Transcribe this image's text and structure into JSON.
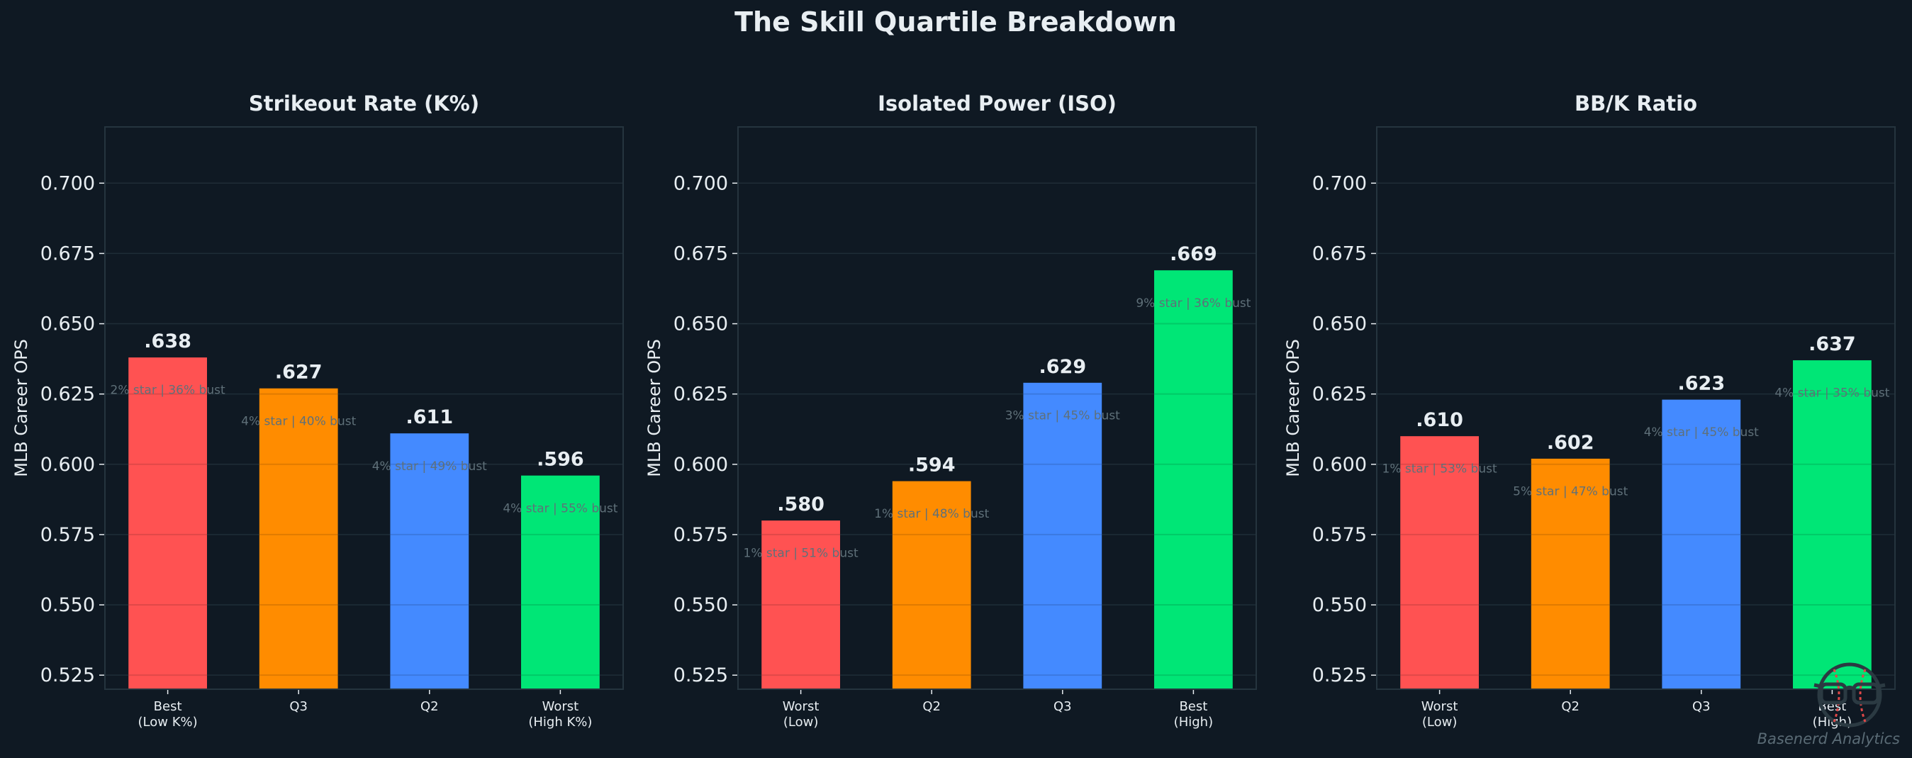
{
  "title": "The Skill Quartile Breakdown",
  "watermark": "Basenerd Analytics",
  "logo": "glasses-baseball-logo",
  "colors": {
    "background": "#0f1923",
    "bar_colors": [
      "#FF5252",
      "#FF8C00",
      "#448AFF",
      "#00E676"
    ],
    "text": "#e8eef2",
    "annotation": "#5f7079"
  },
  "chart_data": [
    {
      "type": "bar",
      "title": "Strikeout Rate (K%)",
      "ylabel": "MLB Career OPS",
      "ylim": [
        0.52,
        0.72
      ],
      "yticks": [
        "0.525",
        "0.550",
        "0.575",
        "0.600",
        "0.625",
        "0.650",
        "0.675",
        "0.700"
      ],
      "grid": true,
      "categories": [
        "Best\n(Low K%)",
        "Q3",
        "Q2",
        "Worst\n(High K%)"
      ],
      "values": [
        0.638,
        0.627,
        0.611,
        0.596
      ],
      "value_labels": [
        ".638",
        ".627",
        ".611",
        ".596"
      ],
      "annotations": [
        "2% star | 36% bust",
        "4% star | 40% bust",
        "4% star | 49% bust",
        "4% star | 55% bust"
      ]
    },
    {
      "type": "bar",
      "title": "Isolated Power (ISO)",
      "ylabel": "MLB Career OPS",
      "ylim": [
        0.52,
        0.72
      ],
      "yticks": [
        "0.525",
        "0.550",
        "0.575",
        "0.600",
        "0.625",
        "0.650",
        "0.675",
        "0.700"
      ],
      "grid": true,
      "categories": [
        "Worst\n(Low)",
        "Q2",
        "Q3",
        "Best\n(High)"
      ],
      "values": [
        0.58,
        0.594,
        0.629,
        0.669
      ],
      "value_labels": [
        ".580",
        ".594",
        ".629",
        ".669"
      ],
      "annotations": [
        "1% star | 51% bust",
        "1% star | 48% bust",
        "3% star | 45% bust",
        "9% star | 36% bust"
      ]
    },
    {
      "type": "bar",
      "title": "BB/K Ratio",
      "ylabel": "MLB Career OPS",
      "ylim": [
        0.52,
        0.72
      ],
      "yticks": [
        "0.525",
        "0.550",
        "0.575",
        "0.600",
        "0.625",
        "0.650",
        "0.675",
        "0.700"
      ],
      "grid": true,
      "categories": [
        "Worst\n(Low)",
        "Q2",
        "Q3",
        "Best\n(High)"
      ],
      "values": [
        0.61,
        0.602,
        0.623,
        0.637
      ],
      "value_labels": [
        ".610",
        ".602",
        ".623",
        ".637"
      ],
      "annotations": [
        "1% star | 53% bust",
        "5% star | 47% bust",
        "4% star | 45% bust",
        "4% star | 35% bust"
      ]
    }
  ]
}
